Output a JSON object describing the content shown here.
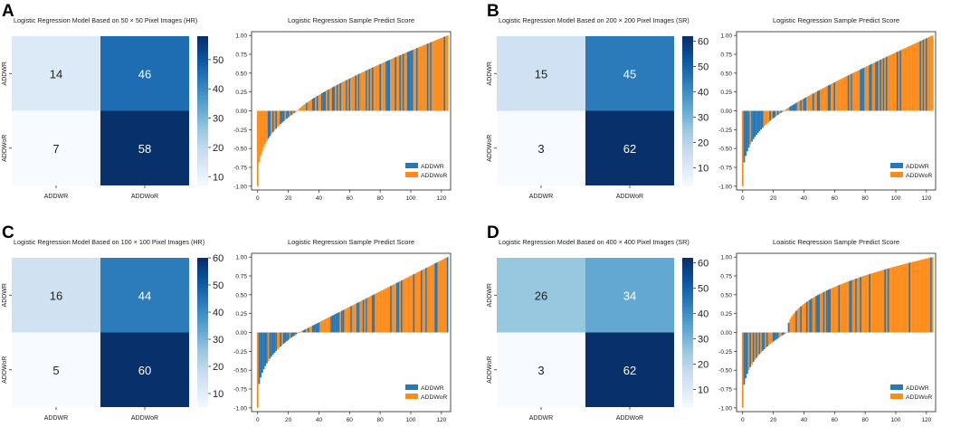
{
  "chart_data": [
    {
      "panel_letter": "A",
      "heatmap": {
        "type": "heatmap",
        "title": "Logistic Regression Model Based on 50 × 50 Pixel Images (HR)",
        "row_labels": [
          "ADDWR",
          "ADDWoR"
        ],
        "col_labels": [
          "ADDWR",
          "ADDWoR"
        ],
        "matrix": [
          [
            14,
            46
          ],
          [
            7,
            58
          ]
        ],
        "colorbar": {
          "range": [
            7,
            58
          ],
          "ticks": [
            10,
            20,
            30,
            40,
            50
          ]
        }
      },
      "bar": {
        "type": "bar",
        "title": "Logistic Regression Sample Predict Score",
        "n": 125,
        "cross_index": 26,
        "left_min": -1.0,
        "left_knee": -0.3,
        "right_max": 1.0,
        "power": 0.8,
        "ylim": [
          -1.05,
          1.05
        ],
        "yticks": [
          "1.00",
          "0.75",
          "0.50",
          "0.25",
          "0.00",
          "-0.25",
          "-0.50",
          "-0.75",
          "-1.00"
        ],
        "xticks": [
          "0",
          "20",
          "40",
          "60",
          "80",
          "100",
          "120"
        ],
        "orange_prob": 0.55,
        "legend": [
          "ADDWR",
          "ADDWoR"
        ]
      }
    },
    {
      "panel_letter": "B",
      "heatmap": {
        "type": "heatmap",
        "title": "Logistic Regression Model Based on 200 × 200 Pixel Images (SR)",
        "row_labels": [
          "ADDWR",
          "ADDWoR"
        ],
        "col_labels": [
          "ADDWR",
          "ADDWoR"
        ],
        "matrix": [
          [
            15,
            45
          ],
          [
            3,
            62
          ]
        ],
        "colorbar": {
          "range": [
            3,
            62
          ],
          "ticks": [
            10,
            20,
            30,
            40,
            50,
            60
          ]
        }
      },
      "bar": {
        "type": "bar",
        "title": "Logistic Regression Sample Predict Score",
        "n": 125,
        "cross_index": 27,
        "left_min": -1.0,
        "left_knee": -0.3,
        "right_max": 1.0,
        "power": 0.9,
        "ylim": [
          -1.05,
          1.05
        ],
        "yticks": [
          "1.00",
          "0.75",
          "0.50",
          "0.25",
          "0.00",
          "-0.25",
          "-0.50",
          "-0.75",
          "-1.00"
        ],
        "xticks": [
          "0",
          "20",
          "40",
          "60",
          "80",
          "100",
          "120"
        ],
        "orange_prob": 0.55,
        "legend": [
          "ADDWR",
          "ADDWoR"
        ]
      }
    },
    {
      "panel_letter": "C",
      "heatmap": {
        "type": "heatmap",
        "title": "Logistic Regression Model Based on 100 × 100 Pixel Images (HR)",
        "row_labels": [
          "ADDWR",
          "ADDWoR"
        ],
        "col_labels": [
          "ADDWR",
          "ADDWoR"
        ],
        "matrix": [
          [
            16,
            44
          ],
          [
            5,
            60
          ]
        ],
        "colorbar": {
          "range": [
            5,
            60
          ],
          "ticks": [
            10,
            20,
            30,
            40,
            50,
            60
          ]
        }
      },
      "bar": {
        "type": "bar",
        "title": "Logistic Regression Sample Predict Score",
        "n": 125,
        "cross_index": 27,
        "left_min": -1.0,
        "left_knee": -0.3,
        "right_max": 1.0,
        "power": 1.0,
        "ylim": [
          -1.05,
          1.05
        ],
        "yticks": [
          "1.00",
          "0.75",
          "0.50",
          "0.25",
          "0.00",
          "-0.25",
          "-0.50",
          "-0.75",
          "-1.00"
        ],
        "xticks": [
          "0",
          "20",
          "40",
          "60",
          "80",
          "100",
          "120"
        ],
        "orange_prob": 0.55,
        "legend": [
          "ADDWR",
          "ADDWoR"
        ]
      }
    },
    {
      "panel_letter": "D",
      "heatmap": {
        "type": "heatmap",
        "title": "Logistic Regression Model Based on 400 × 400 Pixel Images (SR)",
        "row_labels": [
          "ADDWR",
          "ADDWoR"
        ],
        "col_labels": [
          "ADDWR",
          "ADDWoR"
        ],
        "matrix": [
          [
            26,
            34
          ],
          [
            3,
            62
          ]
        ],
        "colorbar": {
          "range": [
            3,
            62
          ],
          "ticks": [
            10,
            20,
            30,
            40,
            50,
            60
          ]
        }
      },
      "bar": {
        "type": "bar",
        "title": "Loaistic Reqression Sample Predict Score",
        "n": 125,
        "cross_index": 29,
        "left_min": -1.0,
        "left_knee": -0.4,
        "right_max": 1.0,
        "power": 0.45,
        "ylim": [
          -1.05,
          1.05
        ],
        "yticks": [
          "1.00",
          "0.75",
          "0.50",
          "0.25",
          "0.00",
          "-0.25",
          "-0.50",
          "-0.75",
          "-1.00"
        ],
        "xticks": [
          "0",
          "20",
          "40",
          "60",
          "80",
          "100",
          "120"
        ],
        "orange_prob": 0.6,
        "legend": [
          "ADDWR",
          "ADDWoR"
        ]
      }
    }
  ],
  "colors": {
    "addwr": "#2878b5",
    "addwor": "#ff8c1a"
  }
}
